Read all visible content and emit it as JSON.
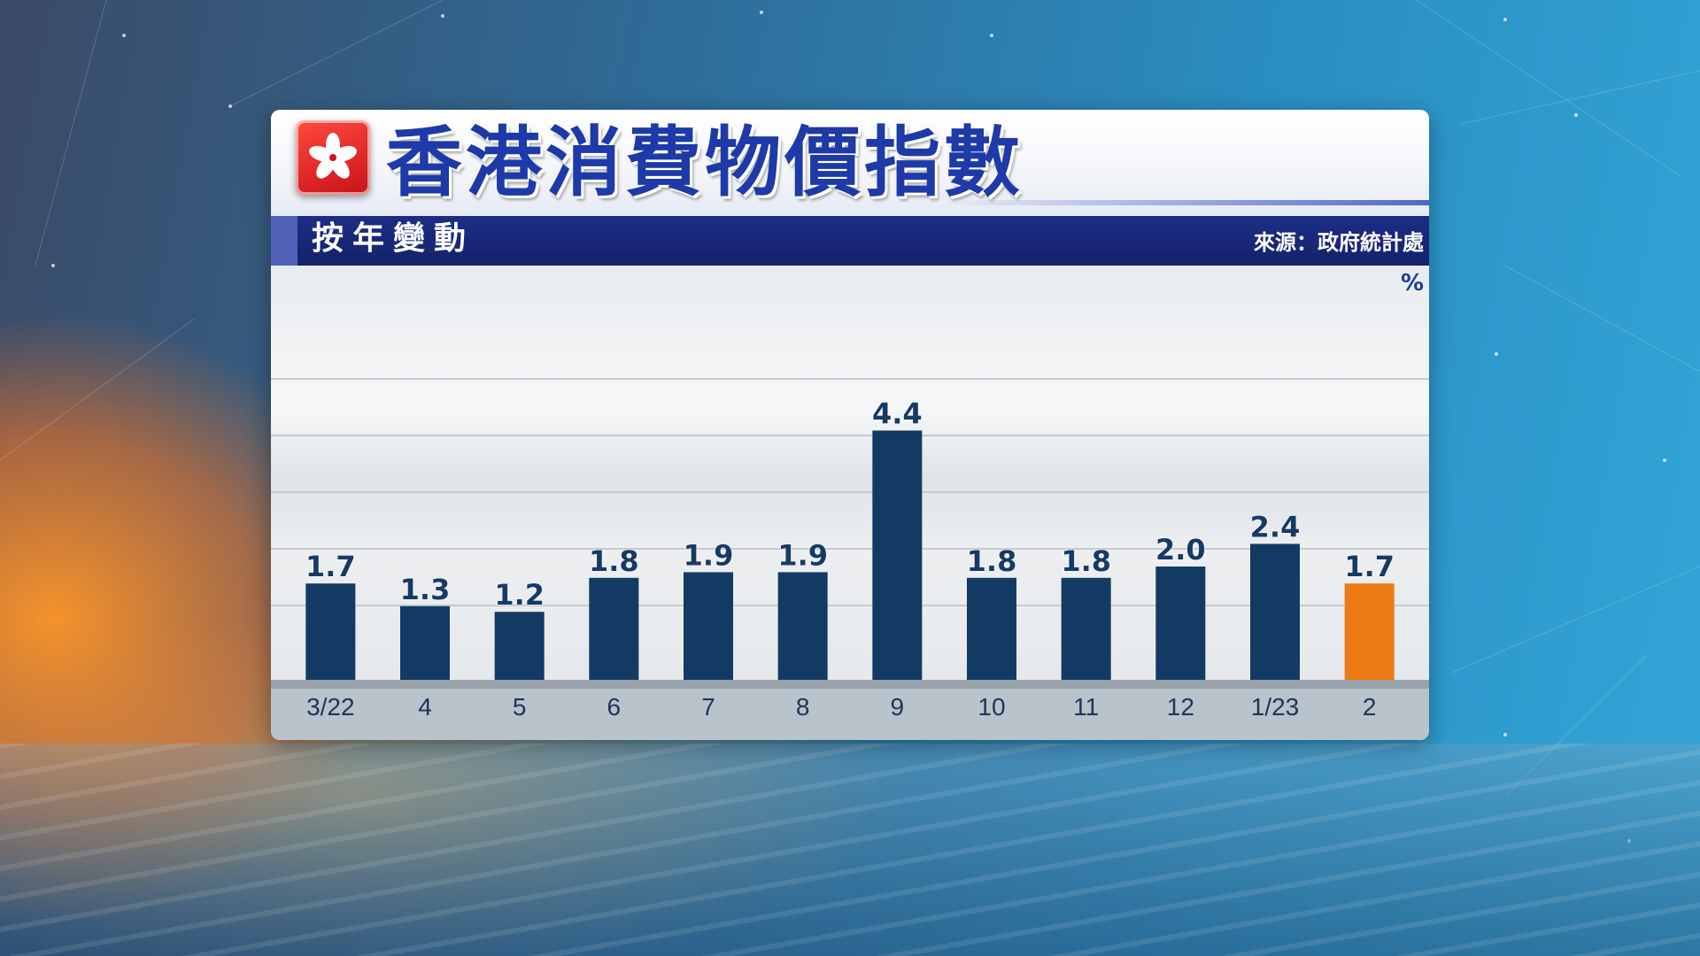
{
  "header": {
    "title": "香港消費物價指數",
    "subtitle": "按年變動",
    "source": "來源：政府統計處"
  },
  "chart_data": {
    "type": "bar",
    "title": "香港消費物價指數",
    "subtitle": "按年變動",
    "unit": "%",
    "categories": [
      "3/22",
      "4",
      "5",
      "6",
      "7",
      "8",
      "9",
      "10",
      "11",
      "12",
      "1/23",
      "2"
    ],
    "values": [
      1.7,
      1.3,
      1.2,
      1.8,
      1.9,
      1.9,
      4.4,
      1.8,
      1.8,
      2.0,
      2.4,
      1.7
    ],
    "value_labels": [
      "1.7",
      "1.3",
      "1.2",
      "1.8",
      "1.9",
      "1.9",
      "4.4",
      "1.8",
      "1.8",
      "2.0",
      "2.4",
      "1.7"
    ],
    "ylim": [
      0,
      5
    ],
    "grid": true,
    "colors": {
      "bar": "#133a63",
      "highlight": "#ec7a14",
      "label": "#163a66"
    },
    "highlight_index": 11
  },
  "icons": {
    "logo": "hong-kong-flag-icon"
  }
}
